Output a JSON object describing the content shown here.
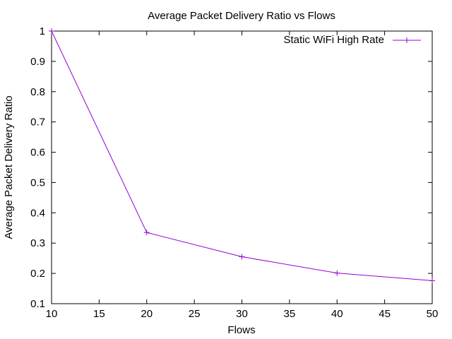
{
  "chart_data": {
    "type": "line",
    "title": "Average Packet Delivery Ratio vs Flows",
    "xlabel": "Flows",
    "ylabel": "Average Packet Delivery Ratio",
    "xlim": [
      10,
      50
    ],
    "ylim": [
      0.1,
      1
    ],
    "xticks": [
      "10",
      "15",
      "20",
      "25",
      "30",
      "35",
      "40",
      "45",
      "50"
    ],
    "yticks": [
      "0.1",
      "0.2",
      "0.3",
      "0.4",
      "0.5",
      "0.6",
      "0.7",
      "0.8",
      "0.9",
      "1"
    ],
    "grid": false,
    "legend_position": "top-right",
    "series": [
      {
        "name": "Static WiFi High Rate",
        "color": "#9400d3",
        "marker": "plus",
        "x": [
          10,
          20,
          30,
          40,
          50
        ],
        "y": [
          1.0,
          0.335,
          0.255,
          0.201,
          0.176
        ]
      }
    ]
  }
}
